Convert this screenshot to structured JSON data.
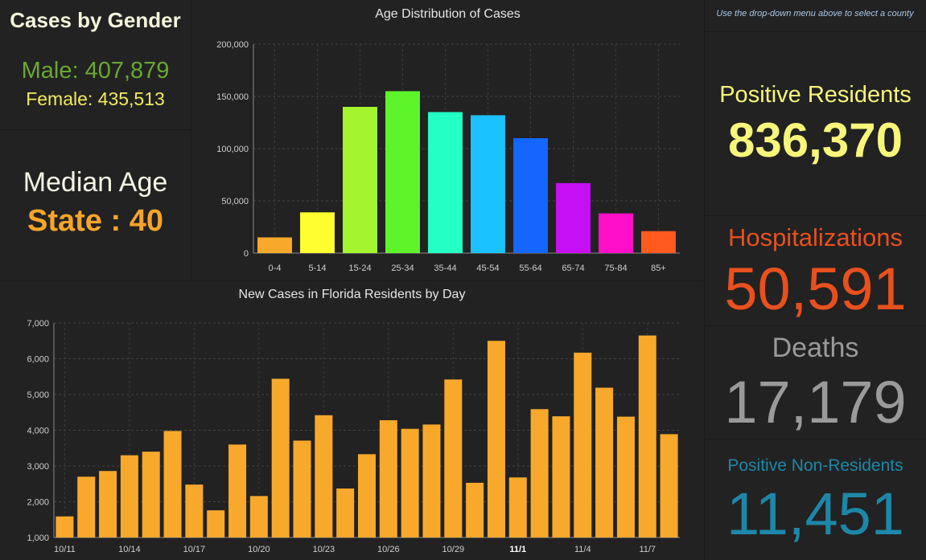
{
  "gender": {
    "title": "Cases by Gender",
    "male": "Male: 407,879",
    "female": "Female: 435,513"
  },
  "median": {
    "title": "Median Age",
    "value": "State : 40"
  },
  "note": "Use the drop-down menu above to select a county",
  "stats": {
    "positive_label": "Positive Residents",
    "positive_value": "836,370",
    "hosp_label": "Hospitalizations",
    "hosp_value": "50,591",
    "deaths_label": "Deaths",
    "deaths_value": "17,179",
    "nonres_label": "Positive Non-Residents",
    "nonres_value": "11,451"
  },
  "colors": {
    "positive": "#f7f67a",
    "hosp": "#e8501e",
    "deaths": "#9a9a9a",
    "nonres": "#1e87a8",
    "daily_bar": "#f8a92c"
  },
  "chart_data": [
    {
      "type": "bar",
      "title": "Age Distribution of Cases",
      "categories": [
        "0-4",
        "5-14",
        "15-24",
        "25-34",
        "35-44",
        "45-54",
        "55-64",
        "65-74",
        "75-84",
        "85+"
      ],
      "values": [
        15000,
        39000,
        140000,
        155000,
        135000,
        132000,
        110000,
        67000,
        38000,
        21000
      ],
      "colors": [
        "#f8a92c",
        "#ffff30",
        "#a5f52e",
        "#5df52a",
        "#24ffc6",
        "#1cc2ff",
        "#1466ff",
        "#c60ff5",
        "#ff10c8",
        "#ff5a1e"
      ],
      "ylim": [
        0,
        200000
      ],
      "yticks": [
        "0",
        "50,000",
        "100,000",
        "150,000",
        "200,000"
      ],
      "ytick_values": [
        0,
        50000,
        100000,
        150000,
        200000
      ],
      "grid": true
    },
    {
      "type": "bar",
      "title": "New Cases in Florida Residents by Day",
      "categories": [
        "10/11",
        "10/12",
        "10/13",
        "10/14",
        "10/15",
        "10/16",
        "10/17",
        "10/18",
        "10/19",
        "10/20",
        "10/21",
        "10/22",
        "10/23",
        "10/24",
        "10/25",
        "10/26",
        "10/27",
        "10/28",
        "10/29",
        "10/30",
        "10/31",
        "11/1",
        "11/2",
        "11/3",
        "11/4",
        "11/5",
        "11/6",
        "11/7",
        "11/8"
      ],
      "values": [
        1590,
        2700,
        2860,
        3300,
        3400,
        3980,
        2480,
        1760,
        3600,
        2160,
        5440,
        3710,
        4420,
        2370,
        3330,
        4280,
        4040,
        4160,
        5420,
        2530,
        6500,
        2680,
        4590,
        4390,
        6170,
        5190,
        4380,
        6650,
        3890
      ],
      "xtick_labels": [
        "10/11",
        "10/14",
        "10/17",
        "10/20",
        "10/23",
        "10/26",
        "10/29",
        "11/1",
        "11/4",
        "11/7"
      ],
      "ylim": [
        1000,
        7000
      ],
      "yticks": [
        "1,000",
        "2,000",
        "3,000",
        "4,000",
        "5,000",
        "6,000",
        "7,000"
      ],
      "ytick_values": [
        1000,
        2000,
        3000,
        4000,
        5000,
        6000,
        7000
      ],
      "grid": true
    }
  ]
}
